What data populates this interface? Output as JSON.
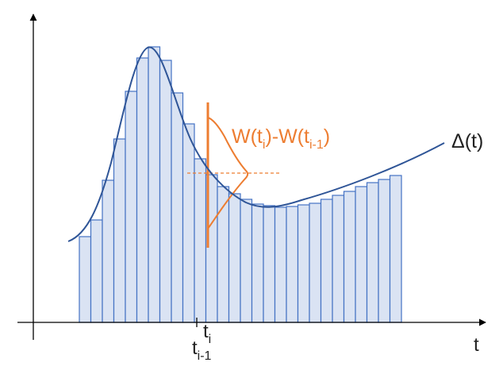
{
  "figure": {
    "curve_label": "Δ(t)",
    "noise_label": {
      "w": "W(t",
      "i": "i",
      "mid": ")-W(t",
      "i1": "i-1",
      "end": ")"
    },
    "axis": {
      "t": "t",
      "ti": "t",
      "ti_sub": "i",
      "ti1": "t",
      "ti1_sub": "i-1"
    }
  },
  "colors": {
    "bar_fill": "#DAE3F3",
    "bar_stroke": "#4472C4",
    "curve": "#2F5597",
    "noise": "#ED7D31",
    "axis": "#000000"
  },
  "bars": {
    "heights": [
      108,
      129,
      179,
      231,
      291,
      333,
      347,
      330,
      289,
      250,
      206,
      186,
      171,
      162,
      155,
      149,
      147,
      145,
      146,
      148,
      150,
      155,
      160,
      165,
      171,
      176,
      180,
      185
    ]
  }
}
